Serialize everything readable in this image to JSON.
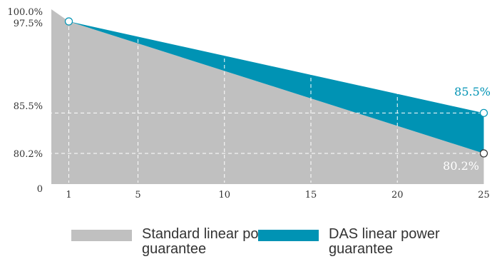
{
  "chart_data": {
    "type": "area",
    "x": [
      1,
      25
    ],
    "xticks": [
      1,
      5,
      10,
      15,
      20,
      25
    ],
    "yticks": [
      "0",
      "80.2%",
      "85.5%",
      "97.5%",
      "100.0%"
    ],
    "series": [
      {
        "name": "Standard linear power guarantee",
        "color": "#c0c0c0",
        "points": [
          [
            0,
            100.0
          ],
          [
            1,
            97.5
          ],
          [
            25,
            80.2
          ]
        ]
      },
      {
        "name": "DAS linear power guarantee",
        "color": "#0093b4",
        "points": [
          [
            1,
            97.5
          ],
          [
            25,
            85.5
          ]
        ]
      }
    ],
    "end_labels": {
      "das": "85.5%",
      "standard": "80.2%"
    },
    "grid": true,
    "legend_position": "bottom"
  },
  "legend": {
    "standard": "Standard linear power guarantee",
    "das": "DAS linear power guarantee"
  }
}
